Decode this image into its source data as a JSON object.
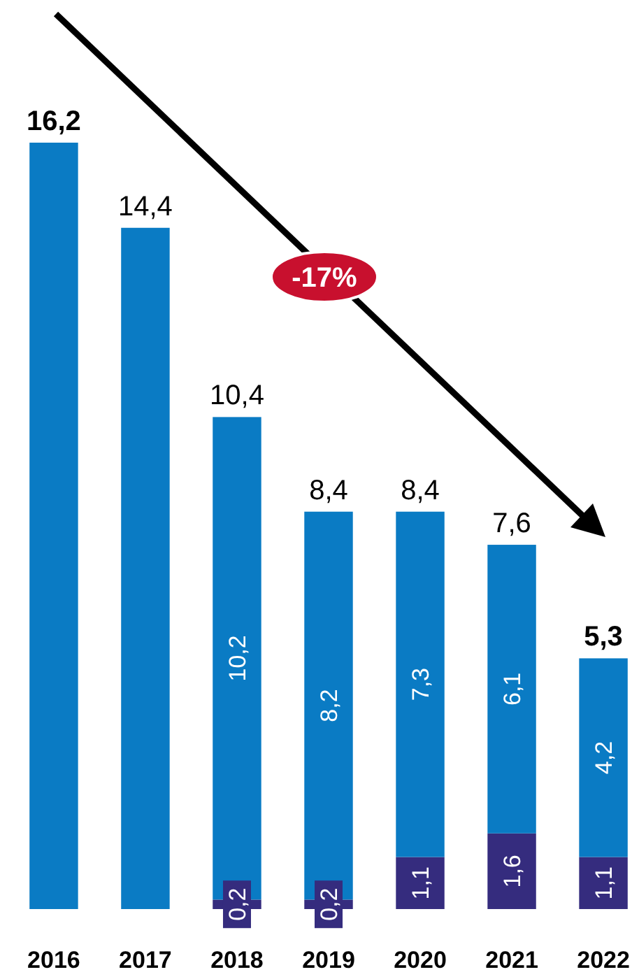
{
  "chart_data": {
    "type": "bar",
    "stacked": true,
    "categories": [
      "2016",
      "2017",
      "2018",
      "2019",
      "2020",
      "2021",
      "2022"
    ],
    "series": [
      {
        "color": "#352c7e",
        "values": [
          null,
          null,
          0.2,
          0.2,
          1.1,
          1.6,
          1.1
        ],
        "value_labels": [
          null,
          null,
          "0,2",
          "0,2",
          "1,1",
          "1,6",
          "1,1"
        ]
      },
      {
        "color": "#0a7bc4",
        "values": [
          16.2,
          14.4,
          10.2,
          8.2,
          7.3,
          6.1,
          4.2
        ],
        "value_labels": [
          null,
          null,
          "10,2",
          "8,2",
          "7,3",
          "6,1",
          "4,2"
        ]
      }
    ],
    "totals": [
      "16,2",
      "14,4",
      "10,4",
      "8,4",
      "8,4",
      "7,6",
      "5,3"
    ],
    "annotations": [
      "-17%"
    ]
  }
}
